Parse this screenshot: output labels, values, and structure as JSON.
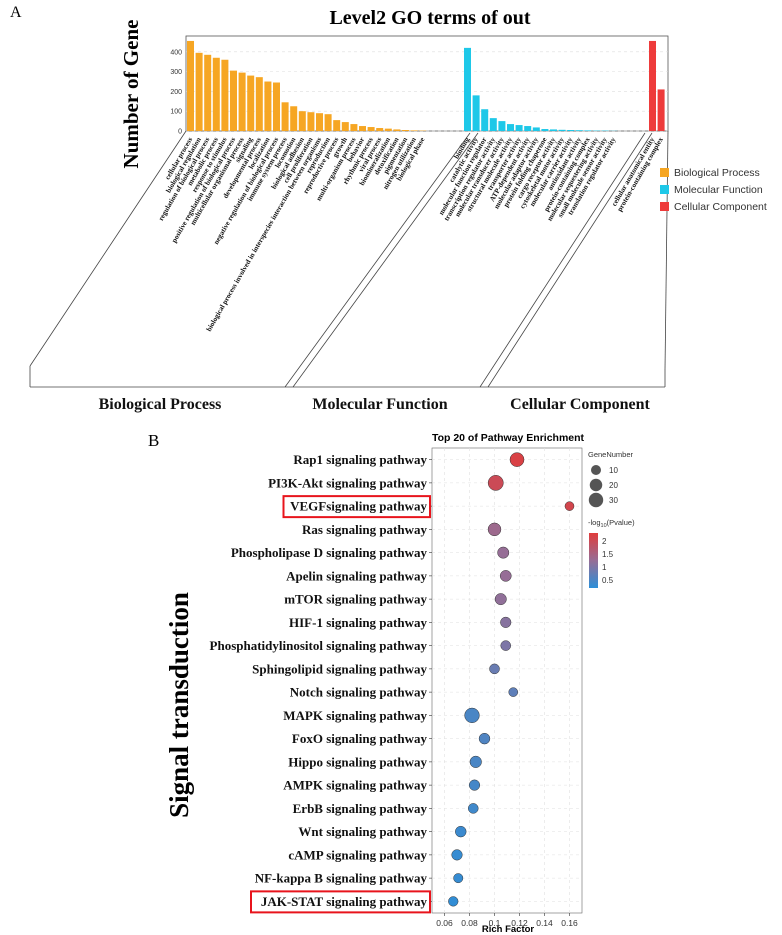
{
  "panel_a_label": "A",
  "panel_b_label": "B",
  "colors": {
    "biological": "#f6a623",
    "molecular": "#1ec8e8",
    "cellular": "#ee3b3b",
    "highlight": "#e8141c",
    "low": "#2c8fd8",
    "high": "#e03c3c"
  },
  "chart_data": [
    {
      "type": "bar",
      "title": "Level2 GO terms of out",
      "ylabel": "Number of Gene",
      "ylim": [
        0,
        480
      ],
      "yticks": [
        0,
        100,
        200,
        300,
        400
      ],
      "legend": [
        "Biological Process",
        "Molecular Function",
        "Cellular Component"
      ],
      "legend_position": "right",
      "series": [
        {
          "name": "Biological Process",
          "group_label": "Biological Process",
          "categories": [
            "cellular process",
            "biological regulation",
            "regulation of biological process",
            "metabolic process",
            "response to stimulus",
            "positive regulation of biological process",
            "multicellular organismal process",
            "signaling",
            "developmental process",
            "localization",
            "negative regulation of biological process",
            "immune system process",
            "locomotion",
            "biological adhesion",
            "cell proliferation",
            "biological process involved in interspecies interaction between organisms",
            "reproduction",
            "reproductive process",
            "growth",
            "multi-organism process",
            "behavior",
            "rhythmic process",
            "viral process",
            "biomineralization",
            "detoxification",
            "pigmentation",
            "nitrogen utilization",
            "biological phase"
          ],
          "values": [
            455,
            395,
            385,
            370,
            360,
            305,
            295,
            280,
            272,
            250,
            245,
            145,
            125,
            100,
            95,
            90,
            85,
            55,
            45,
            35,
            25,
            20,
            15,
            12,
            8,
            5,
            3,
            2
          ]
        },
        {
          "name": "Molecular Function",
          "group_label": "Molecular Function",
          "categories": [
            "binding",
            "catalytic activity",
            "molecular function regulator",
            "transcription regulator activity",
            "molecular transducer activity",
            "structural molecule activity",
            "transporter activity",
            "ATP-dependent activity",
            "molecular adaptor activity",
            "protein folding chaperone",
            "cargo receptor activity",
            "cytoskeletal motor activity",
            "molecular carrier activity",
            "antioxidant activity",
            "protein-containing complex",
            "molecular sequestering activity",
            "small molecule sensor activity",
            "translation regulator activity"
          ],
          "values": [
            420,
            180,
            110,
            65,
            50,
            35,
            30,
            25,
            18,
            10,
            8,
            6,
            5,
            4,
            3,
            2,
            2,
            1
          ]
        },
        {
          "name": "Cellular Component",
          "group_label": "Cellular Component",
          "categories": [
            "cellular anatomical entity",
            "protein-containing complex"
          ],
          "values": [
            455,
            210
          ]
        }
      ]
    },
    {
      "type": "scatter",
      "title": "Top 20 of Pathway Enrichment",
      "xlabel": "Rich Factor",
      "group_label": "Signal transduction",
      "xlim": [
        0.05,
        0.17
      ],
      "xticks": [
        "0.06",
        "0.08",
        "0.1",
        "0.12",
        "0.14",
        "0.16"
      ],
      "categories": [
        "Rap1 signaling pathway",
        "PI3K-Akt signaling pathway",
        "VEGFsignaling pathway",
        "Ras signaling pathway",
        "Phospholipase D signaling pathway",
        "Apelin signaling pathway",
        "mTOR signaling pathway",
        "HIF-1 signaling pathway",
        "Phosphatidylinositol signaling pathway",
        "Sphingolipid signaling pathway",
        "Notch signaling pathway",
        "MAPK signaling pathway",
        "FoxO signaling pathway",
        "Hippo signaling pathway",
        "AMPK signaling pathway",
        "ErbB signaling pathway",
        "Wnt signaling pathway",
        "cAMP signaling pathway",
        "NF-kappa B signaling pathway",
        "JAK-STAT signaling pathway"
      ],
      "highlighted": [
        "VEGFsignaling pathway",
        "JAK-STAT signaling pathway"
      ],
      "rich_factor": [
        0.118,
        0.101,
        0.16,
        0.1,
        0.107,
        0.109,
        0.105,
        0.109,
        0.109,
        0.1,
        0.115,
        0.082,
        0.092,
        0.085,
        0.084,
        0.083,
        0.073,
        0.07,
        0.071,
        0.067
      ],
      "gene_number": [
        28,
        35,
        7,
        22,
        15,
        14,
        15,
        12,
        10,
        10,
        7,
        32,
        13,
        16,
        12,
        10,
        13,
        12,
        8,
        9
      ],
      "neg_log10_p": [
        2.2,
        2.0,
        2.1,
        1.35,
        1.25,
        1.25,
        1.2,
        1.1,
        1.0,
        0.8,
        0.7,
        0.5,
        0.55,
        0.5,
        0.45,
        0.4,
        0.35,
        0.3,
        0.3,
        0.25
      ],
      "legend_size": {
        "title": "GeneNumber",
        "values": [
          10,
          20,
          30
        ],
        "labels": [
          "10",
          "20",
          "30"
        ]
      },
      "legend_color": {
        "title": "-log10(Pvalue)",
        "title_prefix": "-log",
        "title_sub": "10",
        "title_suffix": "(Pvalue)",
        "ticks": [
          2,
          1.5,
          1,
          0.5
        ],
        "tick_labels": [
          "2",
          "1.5",
          "1",
          "0.5"
        ],
        "range": [
          0.2,
          2.3
        ]
      }
    }
  ]
}
